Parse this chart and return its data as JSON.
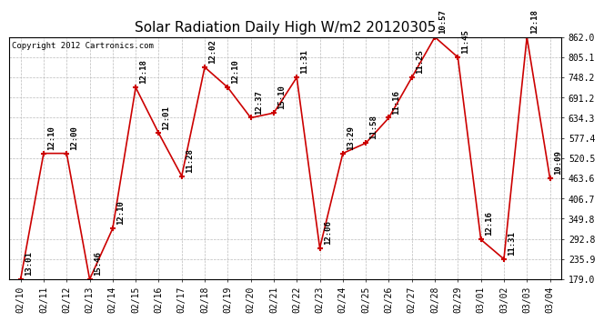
{
  "title": "Solar Radiation Daily High W/m2 20120305",
  "copyright": "Copyright 2012 Cartronics.com",
  "dates": [
    "02/10",
    "02/11",
    "02/12",
    "02/13",
    "02/14",
    "02/15",
    "02/16",
    "02/17",
    "02/18",
    "02/19",
    "02/20",
    "02/21",
    "02/22",
    "02/23",
    "02/24",
    "02/25",
    "02/26",
    "02/27",
    "02/28",
    "02/29",
    "03/01",
    "03/02",
    "03/03",
    "03/04"
  ],
  "values": [
    179.0,
    534.0,
    534.0,
    179.0,
    322.0,
    720.0,
    591.0,
    470.0,
    777.0,
    720.0,
    634.3,
    648.0,
    748.2,
    267.0,
    534.0,
    563.0,
    634.3,
    748.2,
    862.0,
    805.1,
    291.0,
    235.9,
    862.0,
    463.6
  ],
  "times": [
    "13:01",
    "12:10",
    "12:00",
    "15:46",
    "12:10",
    "12:18",
    "12:01",
    "11:28",
    "12:02",
    "12:10",
    "12:37",
    "15:10",
    "11:31",
    "12:06",
    "13:29",
    "11:58",
    "11:16",
    "11:25",
    "10:57",
    "11:45",
    "12:16",
    "11:31",
    "12:18",
    "10:09"
  ],
  "ylim_min": 179.0,
  "ylim_max": 862.0,
  "yticks": [
    179.0,
    235.9,
    292.8,
    349.8,
    406.7,
    463.6,
    520.5,
    577.4,
    634.3,
    691.2,
    748.2,
    805.1,
    862.0
  ],
  "yticklabels": [
    "179.0",
    "235.9",
    "292.8",
    "349.8",
    "406.7",
    "463.6",
    "520.5",
    "577.4",
    "634.3",
    "691.2",
    "748.2",
    "805.1",
    "862.0"
  ],
  "line_color": "#cc0000",
  "marker_color": "#cc0000",
  "bg_color": "#ffffff",
  "grid_color": "#bbbbbb",
  "title_fontsize": 11,
  "label_fontsize": 6.5,
  "tick_fontsize": 7,
  "copyright_fontsize": 6.5
}
